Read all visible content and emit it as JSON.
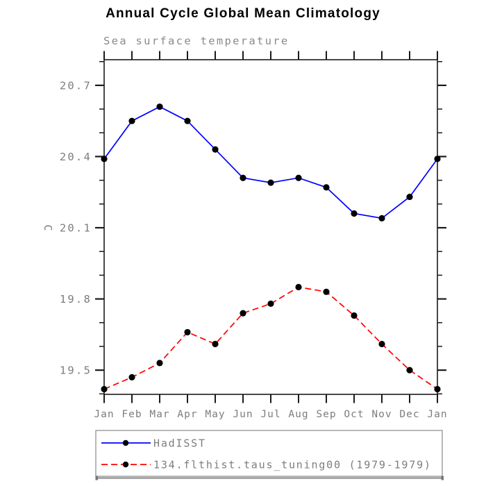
{
  "chart_data": {
    "type": "line",
    "title": "Annual Cycle Global Mean Climatology",
    "subtitle": "Sea surface temperature",
    "ylabel": "C",
    "xlabel": "",
    "categories": [
      "Jan",
      "Feb",
      "Mar",
      "Apr",
      "May",
      "Jun",
      "Jul",
      "Aug",
      "Sep",
      "Oct",
      "Nov",
      "Dec",
      "Jan"
    ],
    "series": [
      {
        "name": "HadISST",
        "color": "#0000ff",
        "line_style": "solid",
        "marker": "filled-circle",
        "marker_color": "#000000",
        "values": [
          20.39,
          20.55,
          20.61,
          20.55,
          20.43,
          20.31,
          20.29,
          20.31,
          20.27,
          20.16,
          20.14,
          20.23,
          20.39
        ]
      },
      {
        "name": "134.flthist.taus_tuning00 (1979-1979)",
        "color": "#ff0000",
        "line_style": "dashed",
        "marker": "filled-circle",
        "marker_color": "#000000",
        "values": [
          19.42,
          19.47,
          19.53,
          19.66,
          19.61,
          19.74,
          19.78,
          19.85,
          19.83,
          19.73,
          19.61,
          19.5,
          19.42
        ]
      }
    ],
    "ylim": [
      19.398,
      20.808
    ],
    "yticks_major": [
      20.7,
      20.4,
      20.1,
      19.8,
      19.5
    ],
    "ytick_minor_step": 0.1,
    "grid": false,
    "legend_position": "below-plot-left",
    "legend_entries": [
      "HadISST",
      "134.flthist.taus_tuning00 (1979-1979)"
    ]
  },
  "colors": {
    "axis": "#1a1a1a",
    "tick_labels": "#7d7d7d",
    "subtitle": "#8a8a8a",
    "series1_line": "#0000ff",
    "series2_line": "#ff0000",
    "marker": "#000000",
    "legend_border": "#999999",
    "clipped_edge": "#a3a3a3"
  }
}
